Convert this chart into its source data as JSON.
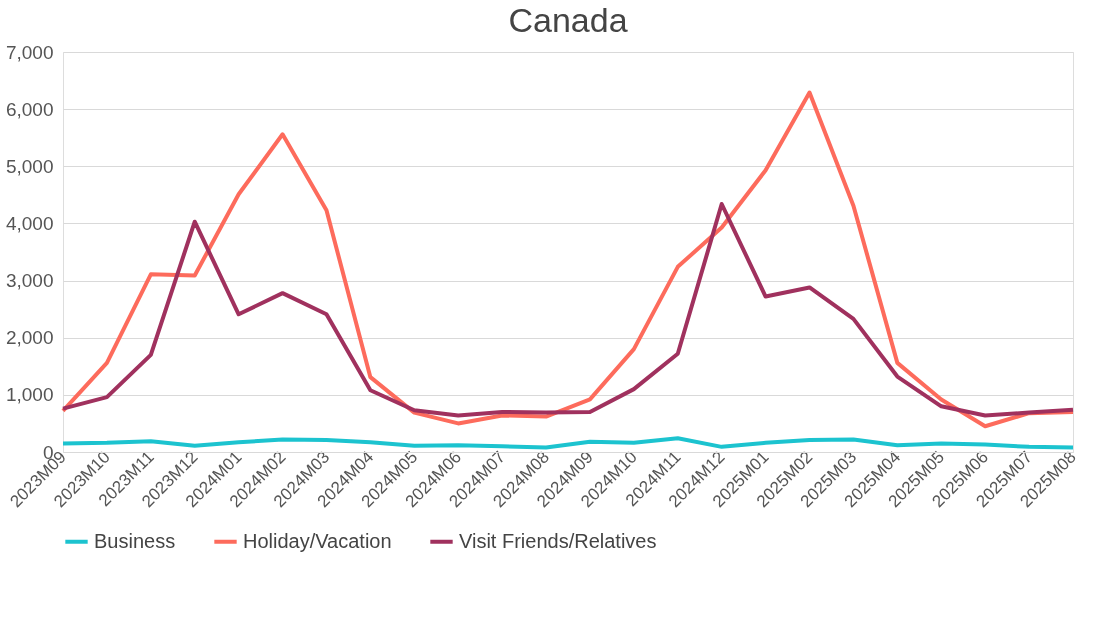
{
  "chart_data": {
    "type": "line",
    "title": "Canada",
    "categories": [
      "2023M09",
      "2023M10",
      "2023M11",
      "2023M12",
      "2024M01",
      "2024M02",
      "2024M03",
      "2024M04",
      "2024M05",
      "2024M06",
      "2024M07",
      "2024M08",
      "2024M09",
      "2024M10",
      "2024M11",
      "2024M12",
      "2025M01",
      "2025M02",
      "2025M03",
      "2025M04",
      "2025M05",
      "2025M06",
      "2025M07",
      "2025M08"
    ],
    "series": [
      {
        "name": "Business",
        "color": "#1cc3cf",
        "values": [
          150,
          160,
          190,
          110,
          170,
          220,
          210,
          170,
          110,
          120,
          100,
          80,
          180,
          160,
          240,
          90,
          160,
          210,
          220,
          120,
          150,
          130,
          90,
          80
        ]
      },
      {
        "name": "Holiday/Vacation",
        "color": "#fd6b5c",
        "values": [
          720,
          1560,
          3110,
          3090,
          4510,
          5560,
          4230,
          1310,
          690,
          500,
          640,
          620,
          920,
          1800,
          3240,
          3930,
          4930,
          6290,
          4310,
          1560,
          920,
          450,
          680,
          700
        ]
      },
      {
        "name": "Visit Friends/Relatives",
        "color": "#a0315e",
        "values": [
          760,
          960,
          1700,
          4030,
          2410,
          2780,
          2410,
          1080,
          730,
          640,
          700,
          690,
          700,
          1100,
          1720,
          4340,
          2720,
          2880,
          2330,
          1320,
          800,
          640,
          690,
          740
        ]
      }
    ],
    "ylim": [
      0,
      7000
    ],
    "yticks": [
      0,
      {
        "value": 1000,
        "label": "1,000"
      },
      {
        "value": 2000,
        "label": "2,000"
      },
      {
        "value": 3000,
        "label": "3,000"
      },
      {
        "value": 4000,
        "label": "4,000"
      },
      {
        "value": 5000,
        "label": "5,000"
      },
      {
        "value": 6000,
        "label": "6,000"
      },
      {
        "value": 7000,
        "label": "7,000"
      }
    ],
    "grid": "y",
    "legend": "bottom",
    "marker": "none",
    "line_style": "solid"
  }
}
